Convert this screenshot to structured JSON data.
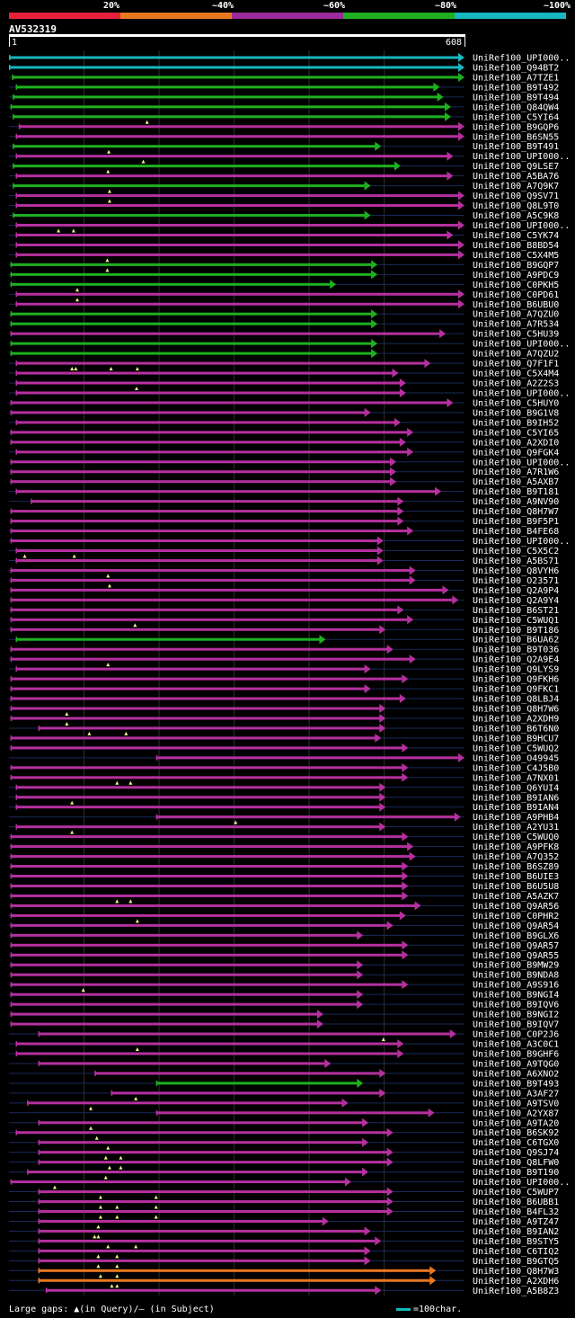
{
  "legend": [
    {
      "label": "20%",
      "color": "#e8213a"
    },
    {
      "label": "~40%",
      "color": "#e87820"
    },
    {
      "label": "~60%",
      "color": "#9b2a9b"
    },
    {
      "label": "~80%",
      "color": "#1eb020"
    },
    {
      "label": "~100%",
      "color": "#17b7c0"
    }
  ],
  "query": {
    "name": "AV532319",
    "start": "1",
    "end": "608",
    "length": 608
  },
  "colors": {
    "cyan": "#17b7c0",
    "green": "#1eb020",
    "magenta": "#b5309f",
    "orange": "#e87820",
    "gap": "#f5f08a",
    "thin": "#1a2b5a",
    "grid": "#2e2e2e"
  },
  "footer": {
    "text": "Large gaps: ▲(in Query)/– (in Subject)",
    "scale": "=100char."
  },
  "hits": [
    {
      "name": "UniRef100_UPI000..",
      "c": "cyan",
      "s": 1,
      "e": 608,
      "g": []
    },
    {
      "name": "UniRef100_Q94BT2",
      "c": "cyan",
      "s": 1,
      "e": 608,
      "g": []
    },
    {
      "name": "UniRef100_A7TZE1",
      "c": "green",
      "s": 5,
      "e": 608,
      "g": []
    },
    {
      "name": "UniRef100_B9T492",
      "c": "green",
      "s": 10,
      "e": 575,
      "g": []
    },
    {
      "name": "UniRef100_B9T494",
      "c": "green",
      "s": 6,
      "e": 580,
      "g": []
    },
    {
      "name": "UniRef100_Q84QW4",
      "c": "green",
      "s": 3,
      "e": 590,
      "g": []
    },
    {
      "name": "UniRef100_C5YI64",
      "c": "green",
      "s": 6,
      "e": 590,
      "g": []
    },
    {
      "name": "UniRef100_B9GQP6",
      "c": "magenta",
      "s": 14,
      "e": 608,
      "g": [
        185
      ]
    },
    {
      "name": "UniRef100_B6SN55",
      "c": "magenta",
      "s": 10,
      "e": 608,
      "g": []
    },
    {
      "name": "UniRef100_B9T491",
      "c": "green",
      "s": 6,
      "e": 497,
      "g": []
    },
    {
      "name": "UniRef100_UPI000..",
      "c": "magenta",
      "s": 10,
      "e": 593,
      "g": [
        134
      ]
    },
    {
      "name": "UniRef100_Q9LSE7",
      "c": "green",
      "s": 6,
      "e": 523,
      "g": [
        180
      ]
    },
    {
      "name": "UniRef100_A5BA76",
      "c": "magenta",
      "s": 10,
      "e": 593,
      "g": [
        133
      ]
    },
    {
      "name": "UniRef100_A7Q9K7",
      "c": "green",
      "s": 6,
      "e": 483,
      "g": []
    },
    {
      "name": "UniRef100_Q9SV71",
      "c": "magenta",
      "s": 10,
      "e": 608,
      "g": [
        135
      ]
    },
    {
      "name": "UniRef100_Q8L9T0",
      "c": "magenta",
      "s": 10,
      "e": 608,
      "g": [
        135
      ]
    },
    {
      "name": "UniRef100_A5C9K8",
      "c": "green",
      "s": 6,
      "e": 483,
      "g": []
    },
    {
      "name": "UniRef100_UPI000..",
      "c": "magenta",
      "s": 10,
      "e": 608,
      "g": []
    },
    {
      "name": "UniRef100_C5YK74",
      "c": "magenta",
      "s": 10,
      "e": 593,
      "g": [
        67,
        87
      ]
    },
    {
      "name": "UniRef100_B8BD54",
      "c": "magenta",
      "s": 10,
      "e": 608,
      "g": []
    },
    {
      "name": "UniRef100_C5X4M5",
      "c": "magenta",
      "s": 10,
      "e": 608,
      "g": []
    },
    {
      "name": "UniRef100_B9GQP7",
      "c": "green",
      "s": 3,
      "e": 492,
      "g": [
        132
      ]
    },
    {
      "name": "UniRef100_A9PDC9",
      "c": "green",
      "s": 3,
      "e": 492,
      "g": [
        132
      ]
    },
    {
      "name": "UniRef100_C0PKH5",
      "c": "green",
      "s": 3,
      "e": 437,
      "g": []
    },
    {
      "name": "UniRef100_C0PD61",
      "c": "magenta",
      "s": 10,
      "e": 608,
      "g": [
        92
      ]
    },
    {
      "name": "UniRef100_B6UBU0",
      "c": "magenta",
      "s": 10,
      "e": 608,
      "g": [
        92
      ]
    },
    {
      "name": "UniRef100_A7QZU0",
      "c": "green",
      "s": 3,
      "e": 492,
      "g": []
    },
    {
      "name": "UniRef100_A7R534",
      "c": "green",
      "s": 3,
      "e": 492,
      "g": []
    },
    {
      "name": "UniRef100_C5HU39",
      "c": "magenta",
      "s": 3,
      "e": 583,
      "g": []
    },
    {
      "name": "UniRef100_UPI000..",
      "c": "green",
      "s": 3,
      "e": 492,
      "g": []
    },
    {
      "name": "UniRef100_A7QZU2",
      "c": "green",
      "s": 3,
      "e": 492,
      "g": []
    },
    {
      "name": "UniRef100_Q7F1F1",
      "c": "magenta",
      "s": 10,
      "e": 563,
      "g": []
    },
    {
      "name": "UniRef100_C5X4M4",
      "c": "magenta",
      "s": 10,
      "e": 520,
      "g": [
        85,
        90,
        137,
        172
      ]
    },
    {
      "name": "UniRef100_A2Z2S3",
      "c": "magenta",
      "s": 10,
      "e": 530,
      "g": []
    },
    {
      "name": "UniRef100_UPI000..",
      "c": "magenta",
      "s": 10,
      "e": 530,
      "g": [
        171
      ]
    },
    {
      "name": "UniRef100_C5HUY0",
      "c": "magenta",
      "s": 3,
      "e": 593,
      "g": []
    },
    {
      "name": "UniRef100_B9G1V8",
      "c": "magenta",
      "s": 3,
      "e": 483,
      "g": []
    },
    {
      "name": "UniRef100_B9IH52",
      "c": "magenta",
      "s": 10,
      "e": 523,
      "g": []
    },
    {
      "name": "UniRef100_C5YI65",
      "c": "magenta",
      "s": 3,
      "e": 540,
      "g": []
    },
    {
      "name": "UniRef100_A2XDI0",
      "c": "magenta",
      "s": 3,
      "e": 530,
      "g": []
    },
    {
      "name": "UniRef100_Q9FGK4",
      "c": "magenta",
      "s": 10,
      "e": 540,
      "g": []
    },
    {
      "name": "UniRef100_UPI000..",
      "c": "magenta",
      "s": 3,
      "e": 517,
      "g": []
    },
    {
      "name": "UniRef100_A7R1W6",
      "c": "magenta",
      "s": 3,
      "e": 517,
      "g": []
    },
    {
      "name": "UniRef100_A5AXB7",
      "c": "magenta",
      "s": 3,
      "e": 517,
      "g": []
    },
    {
      "name": "UniRef100_B9T181",
      "c": "magenta",
      "s": 10,
      "e": 577,
      "g": []
    },
    {
      "name": "UniRef100_A9NV90",
      "c": "magenta",
      "s": 30,
      "e": 527,
      "g": []
    },
    {
      "name": "UniRef100_Q8H7W7",
      "c": "magenta",
      "s": 3,
      "e": 527,
      "g": []
    },
    {
      "name": "UniRef100_B9F5P1",
      "c": "magenta",
      "s": 3,
      "e": 527,
      "g": []
    },
    {
      "name": "UniRef100_B4FE68",
      "c": "magenta",
      "s": 3,
      "e": 540,
      "g": []
    },
    {
      "name": "UniRef100_UPI000..",
      "c": "magenta",
      "s": 3,
      "e": 500,
      "g": []
    },
    {
      "name": "UniRef100_C5X5C2",
      "c": "magenta",
      "s": 10,
      "e": 500,
      "g": []
    },
    {
      "name": "UniRef100_A5BS71",
      "c": "magenta",
      "s": 10,
      "e": 500,
      "g": [
        22,
        88
      ]
    },
    {
      "name": "UniRef100_Q8VYH6",
      "c": "magenta",
      "s": 3,
      "e": 543,
      "g": []
    },
    {
      "name": "UniRef100_O23571",
      "c": "magenta",
      "s": 3,
      "e": 543,
      "g": [
        133
      ]
    },
    {
      "name": "UniRef100_Q2A9P4",
      "c": "magenta",
      "s": 3,
      "e": 587,
      "g": [
        135
      ]
    },
    {
      "name": "UniRef100_Q2A9Y4",
      "c": "magenta",
      "s": 3,
      "e": 600,
      "g": []
    },
    {
      "name": "UniRef100_B6ST21",
      "c": "magenta",
      "s": 3,
      "e": 527,
      "g": []
    },
    {
      "name": "UniRef100_C5WUQ1",
      "c": "magenta",
      "s": 3,
      "e": 540,
      "g": []
    },
    {
      "name": "UniRef100_B9T186",
      "c": "magenta",
      "s": 3,
      "e": 503,
      "g": [
        169
      ]
    },
    {
      "name": "UniRef100_B6UA62",
      "c": "green",
      "s": 10,
      "e": 423,
      "g": []
    },
    {
      "name": "UniRef100_B9T036",
      "c": "magenta",
      "s": 3,
      "e": 513,
      "g": []
    },
    {
      "name": "UniRef100_Q2A9E4",
      "c": "magenta",
      "s": 3,
      "e": 543,
      "g": []
    },
    {
      "name": "UniRef100_Q9LYS9",
      "c": "magenta",
      "s": 10,
      "e": 483,
      "g": [
        133
      ]
    },
    {
      "name": "UniRef100_Q9FKH6",
      "c": "magenta",
      "s": 3,
      "e": 533,
      "g": []
    },
    {
      "name": "UniRef100_Q9FKC1",
      "c": "magenta",
      "s": 3,
      "e": 483,
      "g": []
    },
    {
      "name": "UniRef100_Q8LBJ4",
      "c": "magenta",
      "s": 3,
      "e": 530,
      "g": []
    },
    {
      "name": "UniRef100_Q8H7W6",
      "c": "magenta",
      "s": 3,
      "e": 503,
      "g": []
    },
    {
      "name": "UniRef100_A2XDH9",
      "c": "magenta",
      "s": 3,
      "e": 503,
      "g": [
        78
      ]
    },
    {
      "name": "UniRef100_B6T6N0",
      "c": "magenta",
      "s": 40,
      "e": 503,
      "g": [
        78
      ]
    },
    {
      "name": "UniRef100_B9HCU7",
      "c": "magenta",
      "s": 3,
      "e": 497,
      "g": [
        108,
        157
      ]
    },
    {
      "name": "UniRef100_C5WUQ2",
      "c": "magenta",
      "s": 3,
      "e": 533,
      "g": []
    },
    {
      "name": "UniRef100_O49945",
      "c": "magenta",
      "s": 197,
      "e": 608,
      "g": []
    },
    {
      "name": "UniRef100_C4J5B0",
      "c": "magenta",
      "s": 3,
      "e": 533,
      "g": []
    },
    {
      "name": "UniRef100_A7NX01",
      "c": "magenta",
      "s": 3,
      "e": 533,
      "g": []
    },
    {
      "name": "UniRef100_Q6YUI4",
      "c": "magenta",
      "s": 10,
      "e": 503,
      "g": [
        145,
        163
      ]
    },
    {
      "name": "UniRef100_B9IAN6",
      "c": "magenta",
      "s": 10,
      "e": 503,
      "g": []
    },
    {
      "name": "UniRef100_B9IAN4",
      "c": "magenta",
      "s": 10,
      "e": 503,
      "g": [
        85
      ]
    },
    {
      "name": "UniRef100_A9PHB4",
      "c": "magenta",
      "s": 197,
      "e": 603,
      "g": []
    },
    {
      "name": "UniRef100_A2YU31",
      "c": "magenta",
      "s": 10,
      "e": 503,
      "g": [
        303
      ]
    },
    {
      "name": "UniRef100_C5WUQ0",
      "c": "magenta",
      "s": 3,
      "e": 533,
      "g": [
        85
      ]
    },
    {
      "name": "UniRef100_A9PFK8",
      "c": "magenta",
      "s": 3,
      "e": 540,
      "g": []
    },
    {
      "name": "UniRef100_A7Q352",
      "c": "magenta",
      "s": 3,
      "e": 543,
      "g": []
    },
    {
      "name": "UniRef100_B6SZ89",
      "c": "magenta",
      "s": 3,
      "e": 533,
      "g": []
    },
    {
      "name": "UniRef100_B6UIE3",
      "c": "magenta",
      "s": 3,
      "e": 533,
      "g": []
    },
    {
      "name": "UniRef100_B6U5U8",
      "c": "magenta",
      "s": 3,
      "e": 533,
      "g": []
    },
    {
      "name": "UniRef100_A5AZK7",
      "c": "magenta",
      "s": 3,
      "e": 533,
      "g": []
    },
    {
      "name": "UniRef100_Q9AR56",
      "c": "magenta",
      "s": 3,
      "e": 550,
      "g": [
        145,
        163
      ]
    },
    {
      "name": "UniRef100_C0PHR2",
      "c": "magenta",
      "s": 3,
      "e": 530,
      "g": []
    },
    {
      "name": "UniRef100_Q9AR54",
      "c": "magenta",
      "s": 3,
      "e": 513,
      "g": [
        172
      ]
    },
    {
      "name": "UniRef100_B9GLX6",
      "c": "magenta",
      "s": 3,
      "e": 473,
      "g": []
    },
    {
      "name": "UniRef100_Q9AR57",
      "c": "magenta",
      "s": 3,
      "e": 533,
      "g": []
    },
    {
      "name": "UniRef100_Q9AR55",
      "c": "magenta",
      "s": 3,
      "e": 533,
      "g": []
    },
    {
      "name": "UniRef100_B9MW29",
      "c": "magenta",
      "s": 3,
      "e": 473,
      "g": []
    },
    {
      "name": "UniRef100_B9NDA8",
      "c": "magenta",
      "s": 3,
      "e": 473,
      "g": []
    },
    {
      "name": "UniRef100_A9S916",
      "c": "magenta",
      "s": 3,
      "e": 533,
      "g": []
    },
    {
      "name": "UniRef100_B9NGI4",
      "c": "magenta",
      "s": 3,
      "e": 473,
      "g": [
        100
      ]
    },
    {
      "name": "UniRef100_B9IQV6",
      "c": "magenta",
      "s": 3,
      "e": 473,
      "g": []
    },
    {
      "name": "UniRef100_B9NGI2",
      "c": "magenta",
      "s": 3,
      "e": 420,
      "g": []
    },
    {
      "name": "UniRef100_B9IQV7",
      "c": "magenta",
      "s": 3,
      "e": 420,
      "g": []
    },
    {
      "name": "UniRef100_C0P2J6",
      "c": "magenta",
      "s": 40,
      "e": 597,
      "g": []
    },
    {
      "name": "UniRef100_A3C0C1",
      "c": "magenta",
      "s": 10,
      "e": 527,
      "g": [
        500
      ]
    },
    {
      "name": "UniRef100_B9GHF6",
      "c": "magenta",
      "s": 10,
      "e": 527,
      "g": [
        172
      ]
    },
    {
      "name": "UniRef100_A9TQG0",
      "c": "magenta",
      "s": 40,
      "e": 430,
      "g": []
    },
    {
      "name": "UniRef100_A6XNO2",
      "c": "magenta",
      "s": 115,
      "e": 503,
      "g": []
    },
    {
      "name": "UniRef100_B9T493",
      "c": "green",
      "s": 197,
      "e": 473,
      "g": []
    },
    {
      "name": "UniRef100_A3AF27",
      "c": "magenta",
      "s": 137,
      "e": 503,
      "g": []
    },
    {
      "name": "UniRef100_A9TSV0",
      "c": "magenta",
      "s": 25,
      "e": 453,
      "g": [
        170
      ]
    },
    {
      "name": "UniRef100_A2YX87",
      "c": "magenta",
      "s": 197,
      "e": 568,
      "g": [
        110
      ]
    },
    {
      "name": "UniRef100_A9TA20",
      "c": "magenta",
      "s": 40,
      "e": 480,
      "g": []
    },
    {
      "name": "UniRef100_B6SK92",
      "c": "magenta",
      "s": 10,
      "e": 513,
      "g": [
        110
      ]
    },
    {
      "name": "UniRef100_C6TGX0",
      "c": "magenta",
      "s": 40,
      "e": 480,
      "g": [
        118
      ]
    },
    {
      "name": "UniRef100_Q9SJ74",
      "c": "magenta",
      "s": 40,
      "e": 513,
      "g": [
        133
      ]
    },
    {
      "name": "UniRef100_Q8LFW0",
      "c": "magenta",
      "s": 40,
      "e": 513,
      "g": [
        130,
        150
      ]
    },
    {
      "name": "UniRef100_B9T190",
      "c": "magenta",
      "s": 25,
      "e": 480,
      "g": [
        135,
        150
      ]
    },
    {
      "name": "UniRef100_UPI000..",
      "c": "magenta",
      "s": 3,
      "e": 457,
      "g": [
        130
      ]
    },
    {
      "name": "UniRef100_C5WUP7",
      "c": "magenta",
      "s": 40,
      "e": 513,
      "g": [
        62
      ]
    },
    {
      "name": "UniRef100_B6UBB1",
      "c": "magenta",
      "s": 40,
      "e": 513,
      "g": [
        123,
        197
      ]
    },
    {
      "name": "UniRef100_B4FL32",
      "c": "magenta",
      "s": 40,
      "e": 513,
      "g": [
        123,
        145,
        197
      ]
    },
    {
      "name": "UniRef100_A9TZ47",
      "c": "magenta",
      "s": 40,
      "e": 427,
      "g": [
        123,
        145,
        197
      ]
    },
    {
      "name": "UniRef100_B9IAN2",
      "c": "magenta",
      "s": 40,
      "e": 483,
      "g": [
        120
      ]
    },
    {
      "name": "UniRef100_B9STY5",
      "c": "magenta",
      "s": 40,
      "e": 497,
      "g": [
        115,
        120
      ]
    },
    {
      "name": "UniRef100_C6TIQ2",
      "c": "magenta",
      "s": 40,
      "e": 483,
      "g": [
        133,
        170
      ]
    },
    {
      "name": "UniRef100_B9GTQ5",
      "c": "magenta",
      "s": 40,
      "e": 483,
      "g": [
        120,
        145
      ]
    },
    {
      "name": "UniRef100_Q8H7W3",
      "c": "orange",
      "s": 40,
      "e": 570,
      "g": [
        120,
        145
      ]
    },
    {
      "name": "UniRef100_A2XDH6",
      "c": "orange",
      "s": 40,
      "e": 570,
      "g": [
        123,
        145
      ]
    },
    {
      "name": "UniRef100_A5B8Z3",
      "c": "magenta",
      "s": 50,
      "e": 497,
      "g": [
        138,
        145
      ]
    }
  ]
}
